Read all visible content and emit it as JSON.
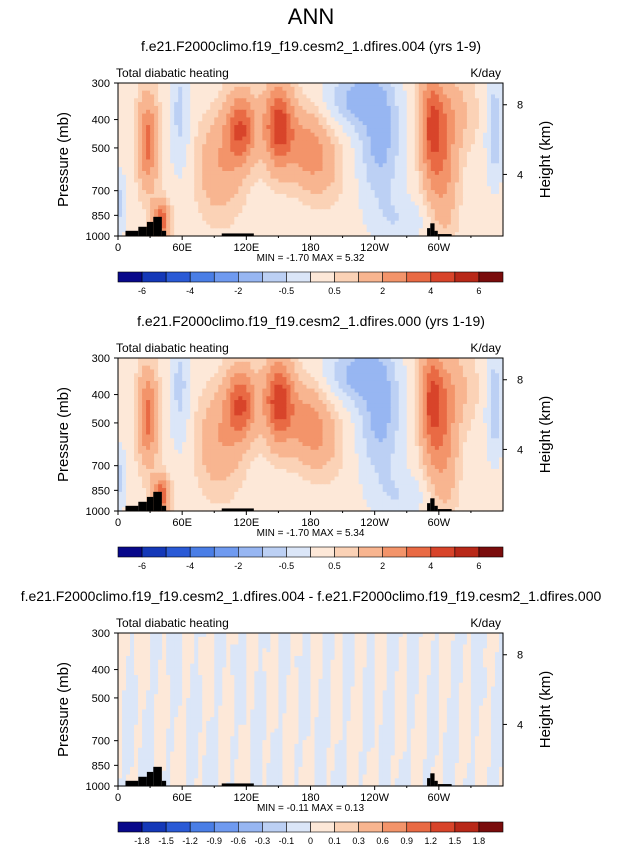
{
  "main_title": "ANN",
  "panels": [
    {
      "title": "f.e21.F2000climo.f19_f19.cesm2_1.dfires.004 (yrs 1-9)",
      "left_label": "Total diabatic heating",
      "right_label": "K/day",
      "stats": "MIN = -1.70  MAX =  5.32",
      "kind": "abs",
      "colorbar_labels": [
        "-6",
        "-4",
        "-2",
        "-0.5",
        "0.5",
        "2",
        "4",
        "6"
      ]
    },
    {
      "title": "f.e21.F2000climo.f19_f19.cesm2_1.dfires.000 (yrs 1-19)",
      "left_label": "Total diabatic heating",
      "right_label": "K/day",
      "stats": "MIN = -1.70  MAX =  5.34",
      "kind": "abs",
      "colorbar_labels": [
        "-6",
        "-4",
        "-2",
        "-0.5",
        "0.5",
        "2",
        "4",
        "6"
      ]
    },
    {
      "title": "f.e21.F2000climo.f19_f19.cesm2_1.dfires.004 - f.e21.F2000climo.f19_f19.cesm2_1.dfires.000",
      "left_label": "Total diabatic heating",
      "right_label": "K/day",
      "stats": "MIN = -0.11  MAX =  0.13",
      "kind": "diff",
      "colorbar_labels": [
        "-1.8",
        "-1.5",
        "-1.2",
        "-0.9",
        "-0.6",
        "-0.3",
        "-0.1",
        "0",
        "0.1",
        "0.3",
        "0.6",
        "0.9",
        "1.2",
        "1.5",
        "1.8"
      ]
    }
  ],
  "colors": {
    "abs_levels": [
      "#08088a",
      "#1438b8",
      "#2a5ad6",
      "#4a7ee6",
      "#6f9af0",
      "#97b6f2",
      "#bcd0f4",
      "#dbe6f8",
      "#fde8d8",
      "#fbd2b6",
      "#f8b590",
      "#f3946a",
      "#e96a44",
      "#d8442a",
      "#b82818",
      "#7a0c0c"
    ],
    "diff_levels": [
      "#08088a",
      "#1438b8",
      "#2a5ad6",
      "#4a7ee6",
      "#6f9af0",
      "#97b6f2",
      "#bcd0f4",
      "#dbe6f8",
      "#fde8d8",
      "#fbd2b6",
      "#f8b590",
      "#f3946a",
      "#e96a44",
      "#d8442a",
      "#b82818",
      "#7a0c0c"
    ],
    "topography": "#000000"
  },
  "chart_data": [
    {
      "type": "heatmap",
      "title": "f.e21.F2000climo.f19_f19.cesm2_1.dfires.004 (yrs 1-9)",
      "variable": "Total diabatic heating",
      "units": "K/day",
      "xlabel": "",
      "ylabel": "Pressure (mb)",
      "ylabel_right": "Height (km)",
      "x_ticks": [
        "0",
        "60E",
        "120E",
        "180",
        "120W",
        "60W"
      ],
      "y_ticks": [
        "300",
        "400",
        "500",
        "700",
        "850",
        "1000"
      ],
      "y_right_ticks": [
        "4",
        "8"
      ],
      "min": -1.7,
      "max": 5.32
    },
    {
      "type": "heatmap",
      "title": "f.e21.F2000climo.f19_f19.cesm2_1.dfires.000 (yrs 1-19)",
      "variable": "Total diabatic heating",
      "units": "K/day",
      "xlabel": "",
      "ylabel": "Pressure (mb)",
      "ylabel_right": "Height (km)",
      "x_ticks": [
        "0",
        "60E",
        "120E",
        "180",
        "120W",
        "60W"
      ],
      "y_ticks": [
        "300",
        "400",
        "500",
        "700",
        "850",
        "1000"
      ],
      "y_right_ticks": [
        "4",
        "8"
      ],
      "min": -1.7,
      "max": 5.34
    },
    {
      "type": "heatmap",
      "title": "f.e21.F2000climo.f19_f19.cesm2_1.dfires.004 - f.e21.F2000climo.f19_f19.cesm2_1.dfires.000",
      "variable": "Total diabatic heating",
      "units": "K/day",
      "xlabel": "",
      "ylabel": "Pressure (mb)",
      "ylabel_right": "Height (km)",
      "x_ticks": [
        "0",
        "60E",
        "120E",
        "180",
        "120W",
        "60W"
      ],
      "y_ticks": [
        "300",
        "400",
        "500",
        "700",
        "850",
        "1000"
      ],
      "y_right_ticks": [
        "4",
        "8"
      ],
      "min": -0.11,
      "max": 0.13
    }
  ],
  "axis_labels": {
    "y_left": "Pressure (mb)",
    "y_right": "Height (km)"
  }
}
